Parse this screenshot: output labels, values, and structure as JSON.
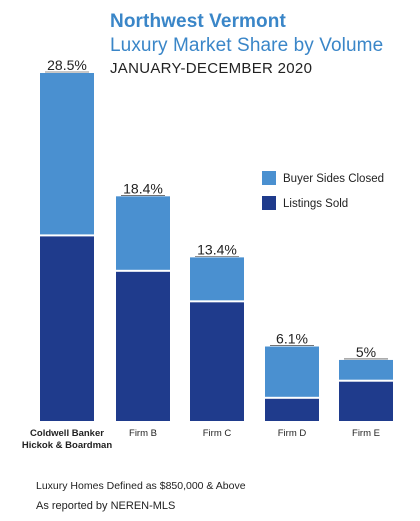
{
  "header": {
    "title_line1": "Northwest Vermont",
    "title_line2": "Luxury Market Share by Volume",
    "subtitle": "JANUARY-DECEMBER 2020"
  },
  "footer": {
    "note1": "Luxury Homes Defined as $850,000 & Above",
    "note2": "As reported by NEREN-MLS"
  },
  "colors": {
    "buyer_sides": "#4a90d0",
    "listings_sold": "#1f3b8c",
    "label": "#222222"
  },
  "chart_data": {
    "type": "bar",
    "stacked": true,
    "categories": [
      "Coldwell Banker\nHickok & Boardman",
      "Firm B",
      "Firm C",
      "Firm D",
      "Firm E"
    ],
    "totals_labels": [
      "28.5%",
      "18.4%",
      "13.4%",
      "6.1%",
      "5%"
    ],
    "totals": [
      28.5,
      18.4,
      13.4,
      6.1,
      5.0
    ],
    "series": [
      {
        "name": "Listings Sold",
        "values": [
          15.2,
          12.3,
          9.8,
          1.9,
          3.3
        ]
      },
      {
        "name": "Buyer Sides Closed",
        "values": [
          13.3,
          6.1,
          3.6,
          4.2,
          1.7
        ]
      }
    ],
    "legend_position": "right",
    "ylim": [
      0,
      28.5
    ],
    "grid": false
  }
}
